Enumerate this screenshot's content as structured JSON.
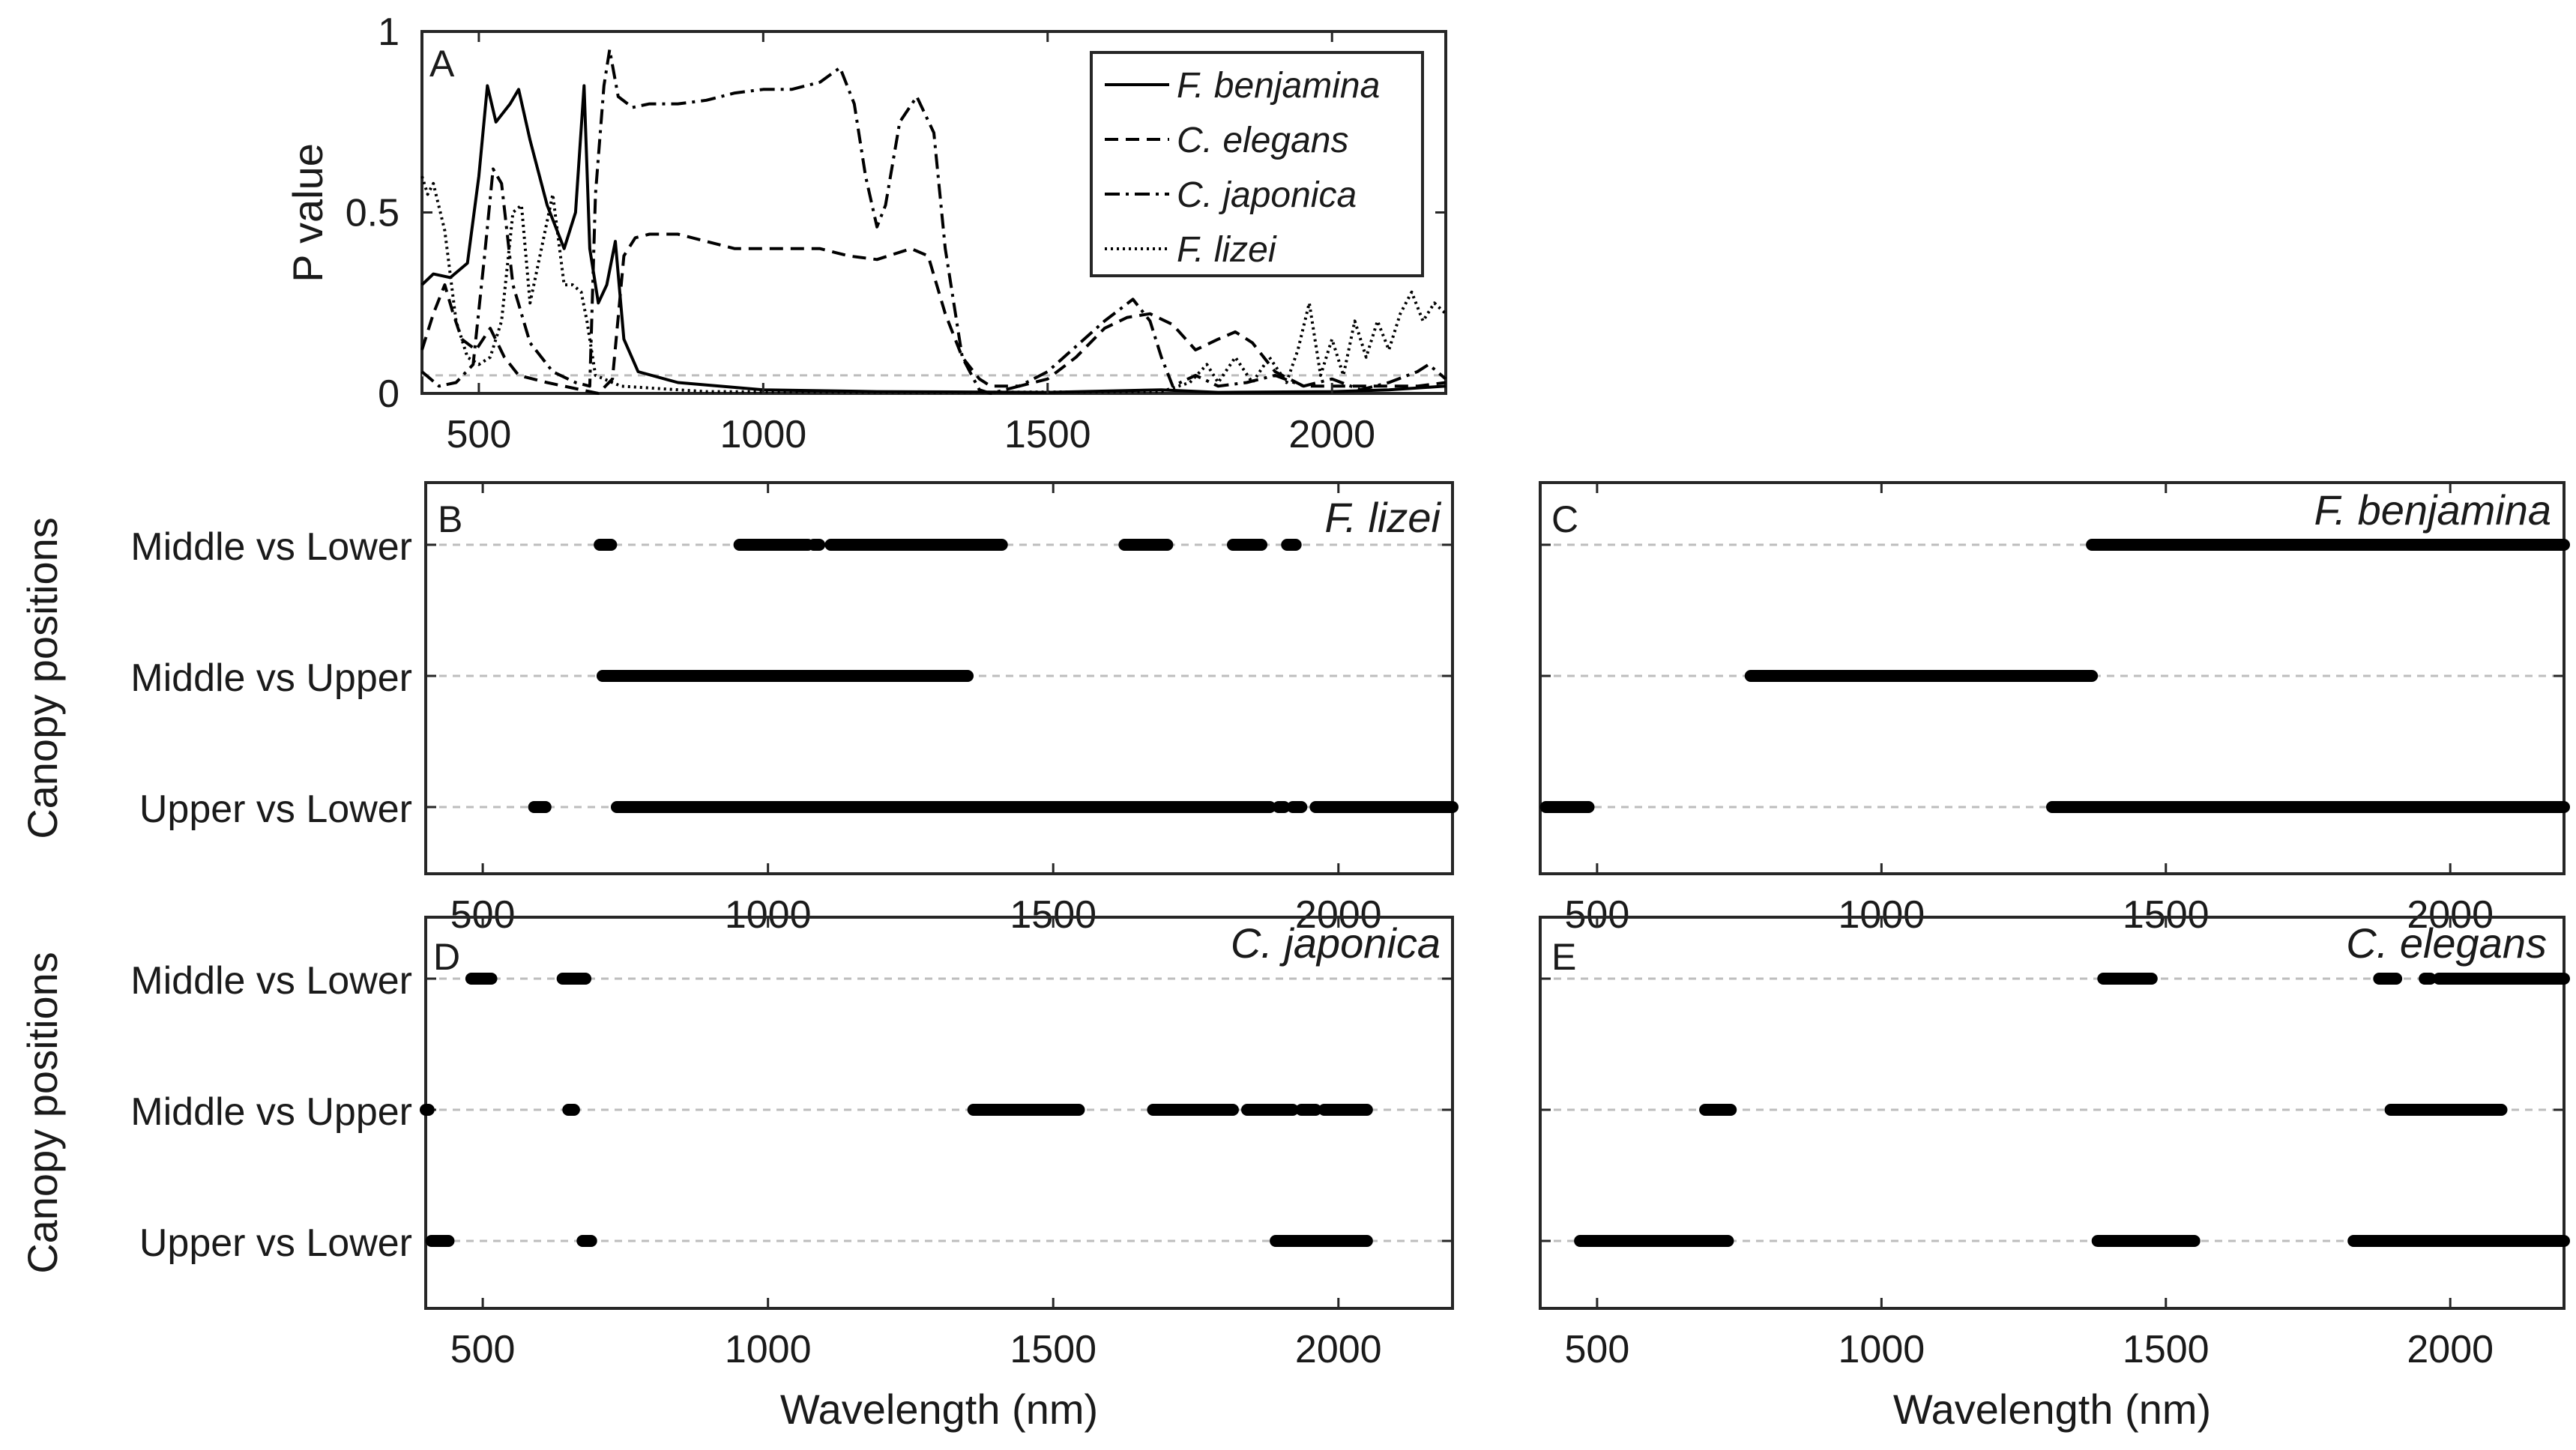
{
  "chart_data": [
    {
      "panel": "A",
      "type": "line",
      "xlim": [
        400,
        2200
      ],
      "ylim": [
        0,
        1
      ],
      "ylabel": "P value",
      "xticks": [
        500,
        1000,
        1500,
        2000
      ],
      "yticks": [
        0,
        0.5,
        1
      ],
      "ytick_labels": [
        "0",
        "0.5",
        "1"
      ],
      "significance_threshold": 0.05,
      "legend": {
        "position": "top-right",
        "entries": [
          "F. benjamina",
          "C. elegans",
          "C. japonica",
          "F. lizei"
        ]
      },
      "series": [
        {
          "name": "F. benjamina",
          "style": "solid",
          "points": [
            [
              400,
              0.3
            ],
            [
              420,
              0.33
            ],
            [
              450,
              0.32
            ],
            [
              480,
              0.36
            ],
            [
              500,
              0.6
            ],
            [
              515,
              0.85
            ],
            [
              530,
              0.75
            ],
            [
              555,
              0.8
            ],
            [
              570,
              0.84
            ],
            [
              590,
              0.7
            ],
            [
              620,
              0.52
            ],
            [
              650,
              0.4
            ],
            [
              670,
              0.5
            ],
            [
              685,
              0.85
            ],
            [
              695,
              0.4
            ],
            [
              710,
              0.25
            ],
            [
              725,
              0.3
            ],
            [
              740,
              0.42
            ],
            [
              755,
              0.15
            ],
            [
              780,
              0.06
            ],
            [
              850,
              0.03
            ],
            [
              1000,
              0.01
            ],
            [
              1200,
              0.005
            ],
            [
              1500,
              0.003
            ],
            [
              1700,
              0.01
            ],
            [
              1800,
              0.003
            ],
            [
              2000,
              0.005
            ],
            [
              2100,
              0.01
            ],
            [
              2200,
              0.02
            ]
          ]
        },
        {
          "name": "C. elegans",
          "style": "dashed",
          "points": [
            [
              400,
              0.12
            ],
            [
              420,
              0.22
            ],
            [
              440,
              0.3
            ],
            [
              455,
              0.22
            ],
            [
              470,
              0.15
            ],
            [
              495,
              0.12
            ],
            [
              520,
              0.18
            ],
            [
              545,
              0.1
            ],
            [
              570,
              0.05
            ],
            [
              620,
              0.03
            ],
            [
              680,
              0.01
            ],
            [
              710,
              0.0
            ],
            [
              735,
              0.04
            ],
            [
              755,
              0.38
            ],
            [
              775,
              0.43
            ],
            [
              800,
              0.44
            ],
            [
              850,
              0.44
            ],
            [
              900,
              0.42
            ],
            [
              950,
              0.4
            ],
            [
              1000,
              0.4
            ],
            [
              1100,
              0.4
            ],
            [
              1150,
              0.38
            ],
            [
              1200,
              0.37
            ],
            [
              1260,
              0.4
            ],
            [
              1290,
              0.38
            ],
            [
              1320,
              0.22
            ],
            [
              1350,
              0.1
            ],
            [
              1380,
              0.04
            ],
            [
              1400,
              0.02
            ],
            [
              1450,
              0.02
            ],
            [
              1500,
              0.04
            ],
            [
              1550,
              0.1
            ],
            [
              1600,
              0.18
            ],
            [
              1640,
              0.21
            ],
            [
              1680,
              0.22
            ],
            [
              1720,
              0.19
            ],
            [
              1760,
              0.12
            ],
            [
              1800,
              0.15
            ],
            [
              1830,
              0.17
            ],
            [
              1860,
              0.14
            ],
            [
              1900,
              0.06
            ],
            [
              1950,
              0.02
            ],
            [
              2000,
              0.02
            ],
            [
              2050,
              0.02
            ],
            [
              2100,
              0.02
            ],
            [
              2150,
              0.02
            ],
            [
              2200,
              0.03
            ]
          ]
        },
        {
          "name": "C. japonica",
          "style": "dashdot",
          "points": [
            [
              400,
              0.06
            ],
            [
              430,
              0.02
            ],
            [
              460,
              0.03
            ],
            [
              490,
              0.08
            ],
            [
              510,
              0.38
            ],
            [
              525,
              0.62
            ],
            [
              540,
              0.58
            ],
            [
              560,
              0.3
            ],
            [
              590,
              0.14
            ],
            [
              630,
              0.06
            ],
            [
              670,
              0.03
            ],
            [
              695,
              0.02
            ],
            [
              705,
              0.55
            ],
            [
              720,
              0.85
            ],
            [
              730,
              0.95
            ],
            [
              745,
              0.82
            ],
            [
              770,
              0.79
            ],
            [
              800,
              0.8
            ],
            [
              850,
              0.8
            ],
            [
              900,
              0.81
            ],
            [
              950,
              0.83
            ],
            [
              1000,
              0.84
            ],
            [
              1050,
              0.84
            ],
            [
              1100,
              0.86
            ],
            [
              1135,
              0.9
            ],
            [
              1160,
              0.8
            ],
            [
              1180,
              0.6
            ],
            [
              1200,
              0.46
            ],
            [
              1215,
              0.52
            ],
            [
              1240,
              0.75
            ],
            [
              1270,
              0.82
            ],
            [
              1300,
              0.72
            ],
            [
              1320,
              0.4
            ],
            [
              1350,
              0.1
            ],
            [
              1380,
              0.01
            ],
            [
              1400,
              0.0
            ],
            [
              1450,
              0.02
            ],
            [
              1500,
              0.06
            ],
            [
              1550,
              0.13
            ],
            [
              1600,
              0.2
            ],
            [
              1650,
              0.26
            ],
            [
              1680,
              0.2
            ],
            [
              1700,
              0.1
            ],
            [
              1720,
              0.02
            ],
            [
              1760,
              0.05
            ],
            [
              1800,
              0.02
            ],
            [
              1850,
              0.03
            ],
            [
              1900,
              0.05
            ],
            [
              1950,
              0.02
            ],
            [
              2000,
              0.04
            ],
            [
              2050,
              0.01
            ],
            [
              2100,
              0.03
            ],
            [
              2150,
              0.06
            ],
            [
              2170,
              0.08
            ],
            [
              2200,
              0.04
            ]
          ]
        },
        {
          "name": "F. lizei",
          "style": "dotted",
          "points": [
            [
              400,
              0.6
            ],
            [
              410,
              0.55
            ],
            [
              420,
              0.58
            ],
            [
              440,
              0.45
            ],
            [
              460,
              0.2
            ],
            [
              480,
              0.1
            ],
            [
              500,
              0.08
            ],
            [
              520,
              0.1
            ],
            [
              540,
              0.2
            ],
            [
              560,
              0.5
            ],
            [
              575,
              0.52
            ],
            [
              590,
              0.25
            ],
            [
              610,
              0.4
            ],
            [
              630,
              0.55
            ],
            [
              650,
              0.3
            ],
            [
              665,
              0.3
            ],
            [
              680,
              0.28
            ],
            [
              690,
              0.2
            ],
            [
              705,
              0.05
            ],
            [
              750,
              0.02
            ],
            [
              900,
              0.005
            ],
            [
              1300,
              0.003
            ],
            [
              1700,
              0.005
            ],
            [
              1750,
              0.03
            ],
            [
              1780,
              0.08
            ],
            [
              1800,
              0.03
            ],
            [
              1830,
              0.1
            ],
            [
              1860,
              0.03
            ],
            [
              1890,
              0.1
            ],
            [
              1920,
              0.03
            ],
            [
              1940,
              0.12
            ],
            [
              1960,
              0.25
            ],
            [
              1980,
              0.05
            ],
            [
              2000,
              0.15
            ],
            [
              2020,
              0.05
            ],
            [
              2040,
              0.2
            ],
            [
              2060,
              0.1
            ],
            [
              2080,
              0.2
            ],
            [
              2100,
              0.12
            ],
            [
              2120,
              0.22
            ],
            [
              2140,
              0.28
            ],
            [
              2160,
              0.2
            ],
            [
              2180,
              0.25
            ],
            [
              2200,
              0.22
            ]
          ]
        }
      ]
    },
    {
      "panel": "B",
      "type": "significance-segments",
      "species": "F. lizei",
      "xlim": [
        400,
        2200
      ],
      "xticks": [
        500,
        1000,
        1500,
        2000
      ],
      "ylabel": "Canopy positions",
      "rows": [
        {
          "label": "Middle vs Lower",
          "ranges": [
            [
              705,
              725
            ],
            [
              950,
              1070
            ],
            [
              1080,
              1090
            ],
            [
              1110,
              1410
            ],
            [
              1625,
              1700
            ],
            [
              1815,
              1865
            ],
            [
              1910,
              1925
            ]
          ]
        },
        {
          "label": "Middle vs Upper",
          "ranges": [
            [
              710,
              1350
            ]
          ]
        },
        {
          "label": "Upper vs Lower",
          "ranges": [
            [
              590,
              610
            ],
            [
              735,
              1880
            ],
            [
              1895,
              1905
            ],
            [
              1920,
              1935
            ],
            [
              1960,
              2200
            ]
          ]
        }
      ]
    },
    {
      "panel": "C",
      "type": "significance-segments",
      "species": "F. benjamina",
      "xlim": [
        400,
        2200
      ],
      "xticks": [
        500,
        1000,
        1500,
        2000
      ],
      "rows": [
        {
          "label": "Middle vs Lower",
          "ranges": [
            [
              1370,
              2200
            ]
          ]
        },
        {
          "label": "Middle vs Upper",
          "ranges": [
            [
              770,
              1370
            ]
          ]
        },
        {
          "label": "Upper vs Lower",
          "ranges": [
            [
              410,
              485
            ],
            [
              1300,
              2200
            ]
          ]
        }
      ]
    },
    {
      "panel": "D",
      "type": "significance-segments",
      "species": "C. japonica",
      "xlim": [
        400,
        2200
      ],
      "xticks": [
        500,
        1000,
        1500,
        2000
      ],
      "xlabel": "Wavelength (nm)",
      "ylabel": "Canopy positions",
      "rows": [
        {
          "label": "Middle vs Lower",
          "ranges": [
            [
              480,
              515
            ],
            [
              640,
              680
            ]
          ]
        },
        {
          "label": "Middle vs Upper",
          "ranges": [
            [
              400,
              405
            ],
            [
              650,
              660
            ],
            [
              1360,
              1545
            ],
            [
              1675,
              1815
            ],
            [
              1840,
              1920
            ],
            [
              1935,
              1960
            ],
            [
              1975,
              2050
            ]
          ]
        },
        {
          "label": "Upper vs Lower",
          "ranges": [
            [
              410,
              440
            ],
            [
              675,
              690
            ],
            [
              1890,
              2050
            ]
          ]
        }
      ]
    },
    {
      "panel": "E",
      "type": "significance-segments",
      "species": "C. elegans",
      "xlim": [
        400,
        2200
      ],
      "xticks": [
        500,
        1000,
        1500,
        2000
      ],
      "xlabel": "Wavelength (nm)",
      "rows": [
        {
          "label": "Middle vs Lower",
          "ranges": [
            [
              1390,
              1475
            ],
            [
              1875,
              1905
            ],
            [
              1955,
              1965
            ],
            [
              1980,
              2200
            ]
          ]
        },
        {
          "label": "Middle vs Upper",
          "ranges": [
            [
              690,
              735
            ],
            [
              1895,
              2090
            ]
          ]
        },
        {
          "label": "Upper vs Lower",
          "ranges": [
            [
              470,
              730
            ],
            [
              1380,
              1550
            ],
            [
              1830,
              2200
            ]
          ]
        }
      ]
    }
  ]
}
